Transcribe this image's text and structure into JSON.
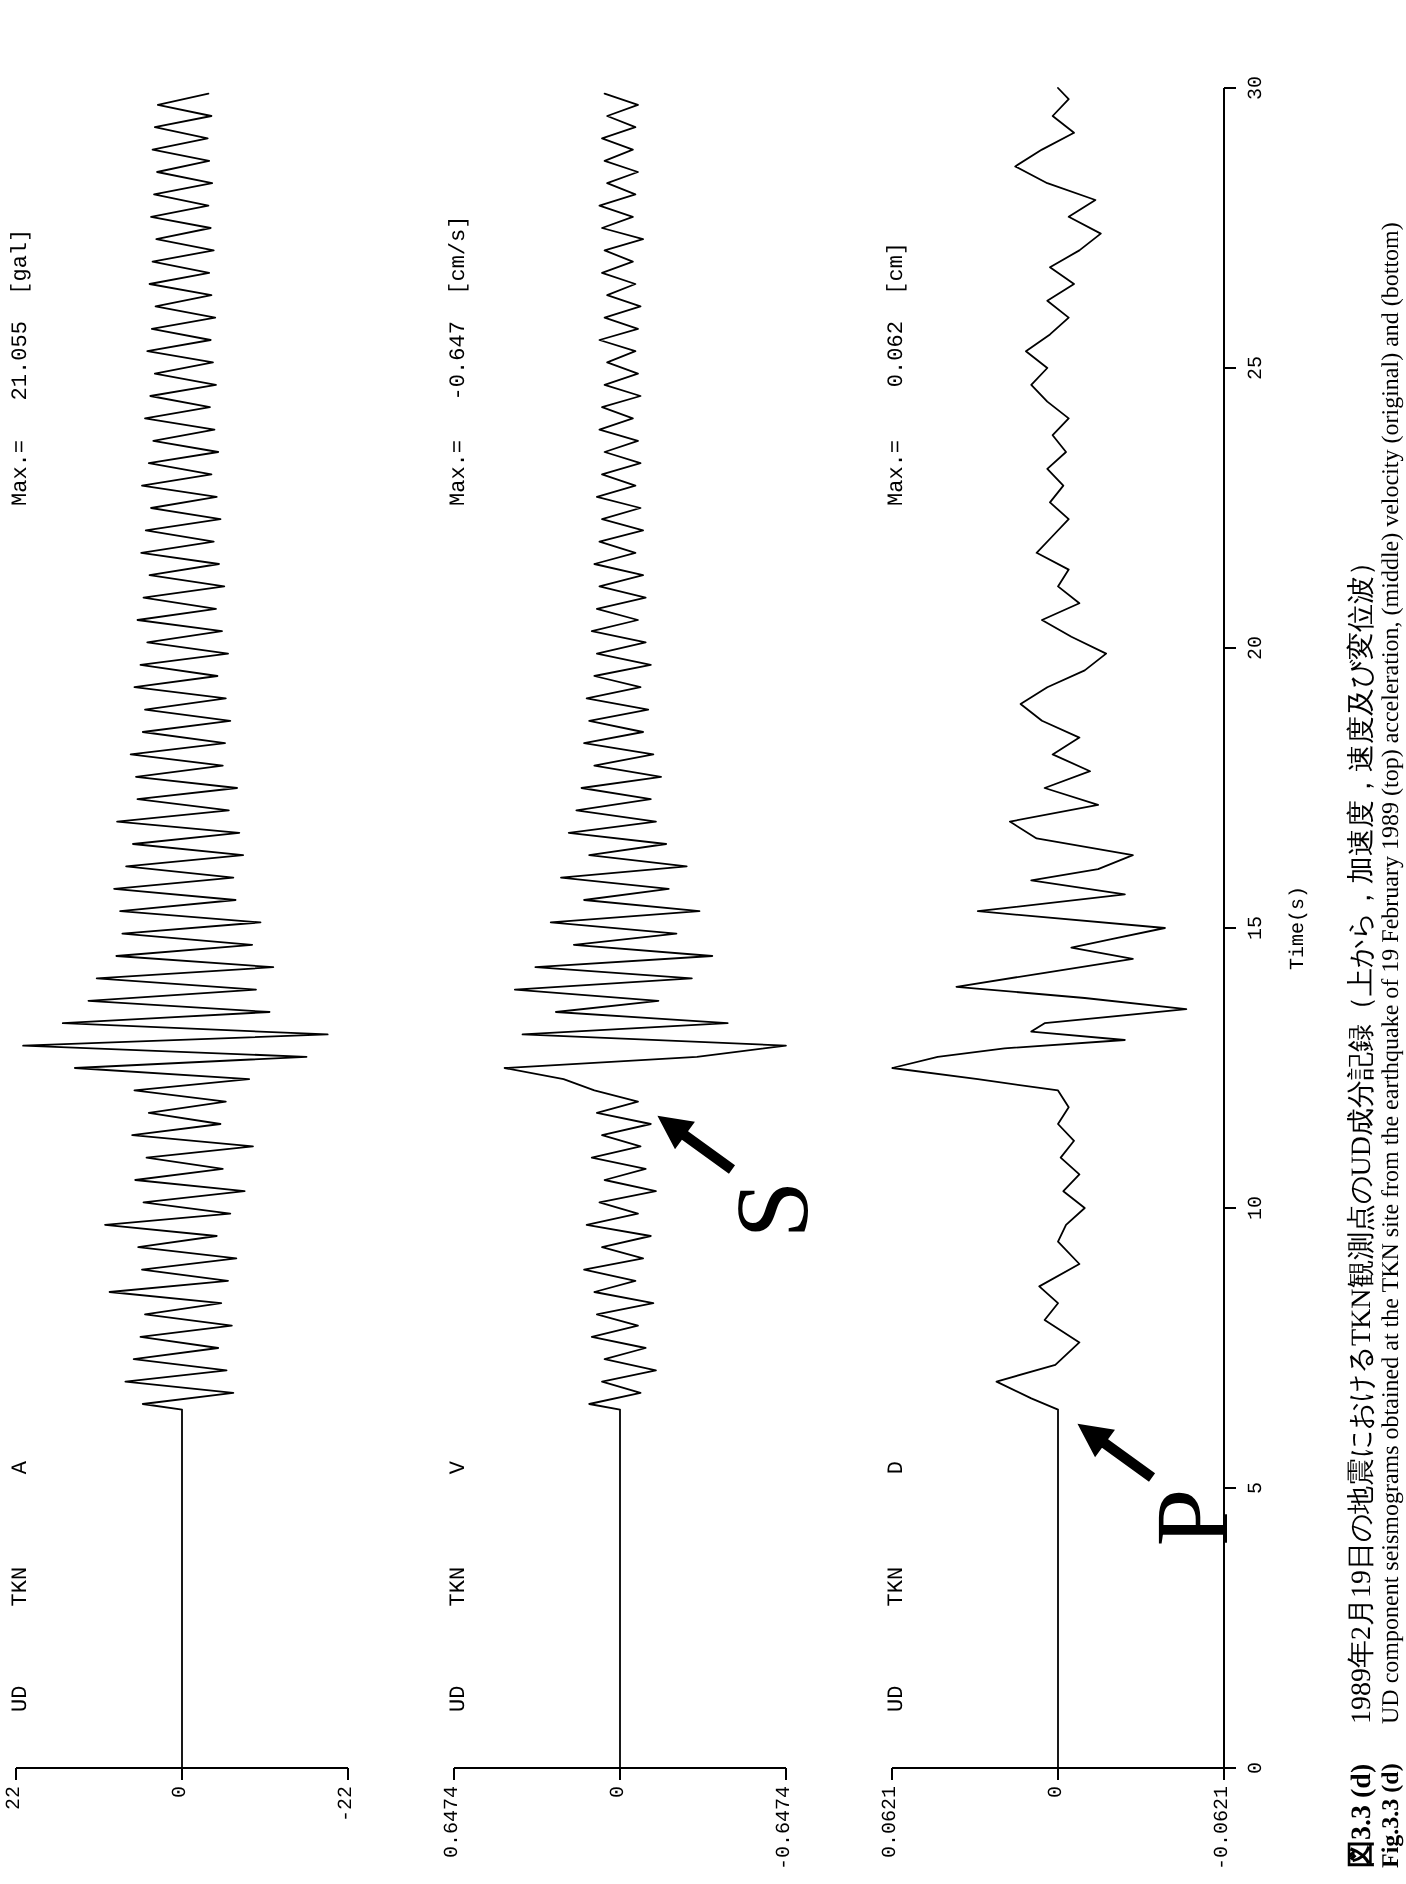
{
  "chart_data": [
    {
      "type": "line",
      "title": "UD      TKN       A",
      "subtitle": "Max.=   21.055  [gal]",
      "xlim": [
        22,
        -22
      ],
      "xticks": [
        22,
        0,
        -22
      ],
      "ylim": [
        0,
        30
      ],
      "tick_labels": "x",
      "color": "#000000",
      "values": [
        0,
        6.4,
        6.5,
        6.7,
        6.9,
        7.1,
        7.3,
        7.5,
        7.7,
        7.9,
        8.1,
        8.3,
        8.5,
        8.7,
        8.9,
        9.1,
        9.3,
        9.5,
        9.7,
        9.9,
        10.1,
        10.3,
        10.5,
        10.7,
        10.9,
        11.1,
        11.3,
        11.5,
        11.7,
        11.9,
        12.1,
        12.3,
        12.5,
        12.7,
        12.9,
        13.1,
        13.3,
        13.5,
        13.7,
        13.9,
        14.1,
        14.3,
        14.5,
        14.7,
        14.9,
        15.1,
        15.3,
        15.5,
        15.7,
        15.9,
        16.1,
        16.3,
        16.5,
        16.7,
        16.9,
        17.1,
        17.3,
        17.5,
        17.7,
        17.9,
        18.1,
        18.3,
        18.5,
        18.7,
        18.9,
        19.1,
        19.3,
        19.5,
        19.7,
        19.9,
        20.1,
        20.3,
        20.5,
        20.7,
        20.9,
        21.1,
        21.3,
        21.5,
        21.7,
        21.9,
        22.1,
        22.3,
        22.5,
        22.7,
        22.9,
        23.1,
        23.3,
        23.5,
        23.7,
        23.9,
        24.1,
        24.3,
        24.5,
        24.7,
        24.9,
        25.1,
        25.3,
        25.5,
        25.7,
        25.9,
        26.1,
        26.3,
        26.5,
        26.7,
        26.9,
        27.1,
        27.3,
        27.5,
        27.7,
        27.9,
        28.1,
        28.3,
        28.5,
        28.7,
        28.9,
        29.1,
        29.3,
        29.5,
        29.7,
        29.9
      ],
      "x": [
        0,
        0,
        5.2,
        -6.8,
        7.5,
        -5.9,
        6.4,
        -4.8,
        5.5,
        -6.6,
        4.9,
        -5.2,
        9.6,
        -6.1,
        5.3,
        -7.2,
        5.8,
        -4.6,
        10.2,
        -6.4,
        5.1,
        -8.3,
        6.2,
        -5.4,
        4.7,
        -9.4,
        6.6,
        -5.1,
        4.4,
        -5.8,
        6.3,
        -8.9,
        14.2,
        -16.5,
        21.055,
        -19.3,
        15.8,
        -11.6,
        12.4,
        -9.8,
        11.3,
        -12.1,
        8.7,
        -9.3,
        7.9,
        -10.4,
        8.2,
        -7.1,
        9.0,
        -6.8,
        7.4,
        -8.1,
        6.5,
        -7.6,
        8.6,
        -6.2,
        5.9,
        -7.3,
        6.1,
        -5.4,
        6.8,
        -5.7,
        5.2,
        -6.4,
        4.9,
        -5.8,
        6.3,
        -4.7,
        5.5,
        -6.1,
        4.6,
        -5.3,
        5.9,
        -4.5,
        5.1,
        -5.6,
        4.3,
        -4.9,
        5.4,
        -4.2,
        4.8,
        -5.1,
        4.1,
        -4.6,
        5.3,
        -3.9,
        4.4,
        -4.8,
        3.8,
        -4.3,
        4.9,
        -3.7,
        4.2,
        -4.5,
        3.6,
        -4.1,
        4.6,
        -3.8,
        4.0,
        -4.4,
        3.5,
        -3.9,
        4.3,
        -3.6,
        3.9,
        -4.2,
        3.4,
        -3.8,
        4.1,
        -3.5,
        3.7,
        -4.0,
        3.3,
        -3.6,
        3.9,
        -3.4,
        3.6,
        -3.9,
        3.2,
        -3.5
      ]
    },
    {
      "type": "line",
      "title": "UD      TKN       V",
      "subtitle": "Max.=   -0.647  [cm/s]",
      "xlim": [
        0.6474,
        -0.6474
      ],
      "xticks": [
        0.6474,
        0,
        -0.6474
      ],
      "ylim": [
        0,
        30
      ],
      "tick_labels": "x",
      "color": "#000000",
      "values": [
        0,
        6.4,
        6.5,
        6.7,
        6.9,
        7.1,
        7.3,
        7.5,
        7.7,
        7.9,
        8.1,
        8.3,
        8.5,
        8.7,
        8.9,
        9.1,
        9.3,
        9.5,
        9.7,
        9.9,
        10.1,
        10.3,
        10.5,
        10.7,
        10.9,
        11.1,
        11.3,
        11.5,
        11.7,
        11.9,
        12.1,
        12.3,
        12.5,
        12.7,
        12.9,
        13.1,
        13.3,
        13.5,
        13.7,
        13.9,
        14.1,
        14.3,
        14.5,
        14.7,
        14.9,
        15.1,
        15.3,
        15.5,
        15.7,
        15.9,
        16.1,
        16.3,
        16.5,
        16.7,
        16.9,
        17.1,
        17.3,
        17.5,
        17.7,
        17.9,
        18.1,
        18.3,
        18.5,
        18.7,
        18.9,
        19.1,
        19.3,
        19.5,
        19.7,
        19.9,
        20.1,
        20.3,
        20.5,
        20.7,
        20.9,
        21.1,
        21.3,
        21.5,
        21.7,
        21.9,
        22.1,
        22.3,
        22.5,
        22.7,
        22.9,
        23.1,
        23.3,
        23.5,
        23.7,
        23.9,
        24.1,
        24.3,
        24.5,
        24.7,
        24.9,
        25.1,
        25.3,
        25.5,
        25.7,
        25.9,
        26.1,
        26.3,
        26.5,
        26.7,
        26.9,
        27.1,
        27.3,
        27.5,
        27.7,
        27.9,
        28.1,
        28.3,
        28.5,
        28.7,
        28.9,
        29.1,
        29.3,
        29.5,
        29.7,
        29.9
      ],
      "x": [
        0,
        0,
        0.12,
        -0.08,
        0.07,
        -0.14,
        0.06,
        -0.1,
        0.11,
        -0.07,
        0.09,
        -0.13,
        0.1,
        -0.06,
        0.14,
        -0.09,
        0.07,
        -0.12,
        0.13,
        -0.07,
        0.08,
        -0.14,
        0.06,
        -0.1,
        0.11,
        -0.08,
        0.07,
        -0.12,
        0.09,
        -0.07,
        0.1,
        0.22,
        0.45,
        -0.3,
        -0.647,
        0.38,
        -0.42,
        0.25,
        -0.15,
        0.41,
        -0.28,
        0.33,
        -0.36,
        0.18,
        -0.22,
        0.27,
        -0.31,
        0.14,
        -0.19,
        0.23,
        -0.26,
        0.12,
        -0.18,
        0.2,
        -0.14,
        0.17,
        -0.12,
        0.15,
        -0.16,
        0.1,
        -0.13,
        0.14,
        -0.09,
        0.12,
        -0.11,
        0.13,
        -0.08,
        0.1,
        -0.12,
        0.09,
        -0.1,
        0.11,
        -0.07,
        0.09,
        -0.1,
        0.08,
        -0.09,
        0.1,
        -0.06,
        0.08,
        -0.09,
        0.07,
        -0.08,
        0.09,
        -0.06,
        0.07,
        -0.08,
        0.06,
        -0.07,
        0.08,
        -0.05,
        0.07,
        -0.08,
        0.06,
        -0.07,
        0.05,
        -0.06,
        0.08,
        -0.07,
        0.06,
        -0.08,
        0.05,
        -0.06,
        0.07,
        -0.05,
        0.06,
        -0.09,
        0.07,
        -0.05,
        0.08,
        -0.06,
        0.05,
        -0.07,
        0.06,
        -0.05,
        0.07,
        -0.06,
        0.05,
        -0.07,
        0.06
      ],
      "annotations": [
        {
          "text": "S",
          "x": -0.07,
          "y": 11.9
        }
      ]
    },
    {
      "type": "line",
      "title": "UD      TKN       D",
      "subtitle": "Max.=    0.062  [cm]",
      "ylabel": "Time(s)",
      "xlim": [
        0.0621,
        -0.0621
      ],
      "xticks": [
        0.0621,
        0,
        -0.0621
      ],
      "ylim": [
        0,
        30
      ],
      "yticks": [
        0,
        5,
        10,
        15,
        20,
        25,
        30
      ],
      "color": "#000000",
      "values": [
        0,
        6.4,
        6.6,
        6.9,
        7.2,
        7.6,
        8.0,
        8.3,
        8.6,
        9.0,
        9.4,
        9.7,
        10.0,
        10.3,
        10.6,
        10.9,
        11.2,
        11.5,
        11.8,
        12.1,
        12.3,
        12.5,
        12.7,
        12.85,
        13.0,
        13.15,
        13.3,
        13.55,
        13.75,
        13.95,
        14.2,
        14.45,
        14.65,
        14.8,
        15.0,
        15.3,
        15.6,
        15.85,
        16.05,
        16.3,
        16.6,
        16.9,
        17.2,
        17.5,
        17.8,
        18.1,
        18.4,
        18.7,
        19.0,
        19.3,
        19.6,
        19.9,
        20.2,
        20.5,
        20.8,
        21.1,
        21.4,
        21.7,
        22.0,
        22.3,
        22.6,
        22.9,
        23.2,
        23.5,
        23.8,
        24.1,
        24.4,
        24.7,
        25.0,
        25.3,
        25.6,
        25.9,
        26.2,
        26.5,
        26.8,
        27.1,
        27.4,
        27.7,
        28.0,
        28.3,
        28.6,
        28.9,
        29.2,
        29.5,
        29.8,
        30.0
      ],
      "x": [
        0,
        0,
        0.01,
        0.023,
        0.001,
        -0.008,
        0.005,
        0,
        0.007,
        -0.008,
        0,
        -0.003,
        -0.01,
        -0.002,
        -0.008,
        -0.001,
        -0.006,
        0,
        -0.004,
        0,
        0.03,
        0.062,
        0.045,
        0.02,
        -0.025,
        0.01,
        0.005,
        -0.048,
        -0.01,
        0.038,
        0.005,
        -0.028,
        -0.005,
        -0.02,
        -0.04,
        0.03,
        -0.025,
        0.01,
        -0.015,
        -0.028,
        0.008,
        0.018,
        -0.015,
        0.005,
        -0.012,
        0.002,
        -0.008,
        0.006,
        0.014,
        0.004,
        -0.01,
        -0.018,
        -0.005,
        0.006,
        -0.008,
        0,
        -0.004,
        0.008,
        0.002,
        -0.004,
        0.003,
        -0.002,
        0.004,
        -0.003,
        0.002,
        -0.004,
        0.004,
        0.01,
        0.004,
        0.012,
        0.003,
        -0.004,
        0.004,
        -0.006,
        0.003,
        -0.008,
        -0.016,
        -0.004,
        -0.014,
        0.004,
        0.016,
        0.006,
        -0.006,
        0.002,
        -0.004,
        0
      ],
      "annotations": [
        {
          "text": "P",
          "x": 0,
          "y": 6.4
        },
        "図3.3 (d)",
        "1989年2月19日の地震におけるTKN観測点のUD成分記録（上から，加速度，速度及び変位波）",
        "Fig.3.3 (d)",
        "UD component seismograms obtained at the TKN site from the earthquake of 19 February 1989 (top) acceleration, (middle) velocity (original) and (bottom)"
      ]
    }
  ]
}
